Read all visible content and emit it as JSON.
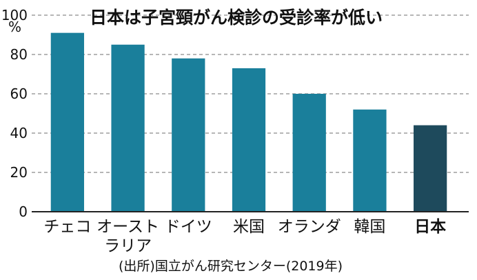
{
  "chart_data": {
    "type": "bar",
    "title": "日本は子宮頸がん検診の受診率が低い",
    "ylabel": "%",
    "ylim": [
      0,
      100
    ],
    "yticks": [
      "0",
      "20",
      "40",
      "60",
      "80",
      "100"
    ],
    "categories": [
      [
        "チェコ"
      ],
      [
        "オースト",
        "ラリア"
      ],
      [
        "ドイツ"
      ],
      [
        "米国"
      ],
      [
        "オランダ"
      ],
      [
        "韓国"
      ],
      [
        "日本"
      ]
    ],
    "values": [
      91,
      85,
      78,
      73,
      60,
      52,
      44
    ],
    "highlight_index": 6,
    "source": "(出所)国立がん研究センター(2019年)",
    "gridlines": true,
    "colors": {
      "bar": "#1a7f9b",
      "highlight": "#1e4a5c"
    }
  }
}
